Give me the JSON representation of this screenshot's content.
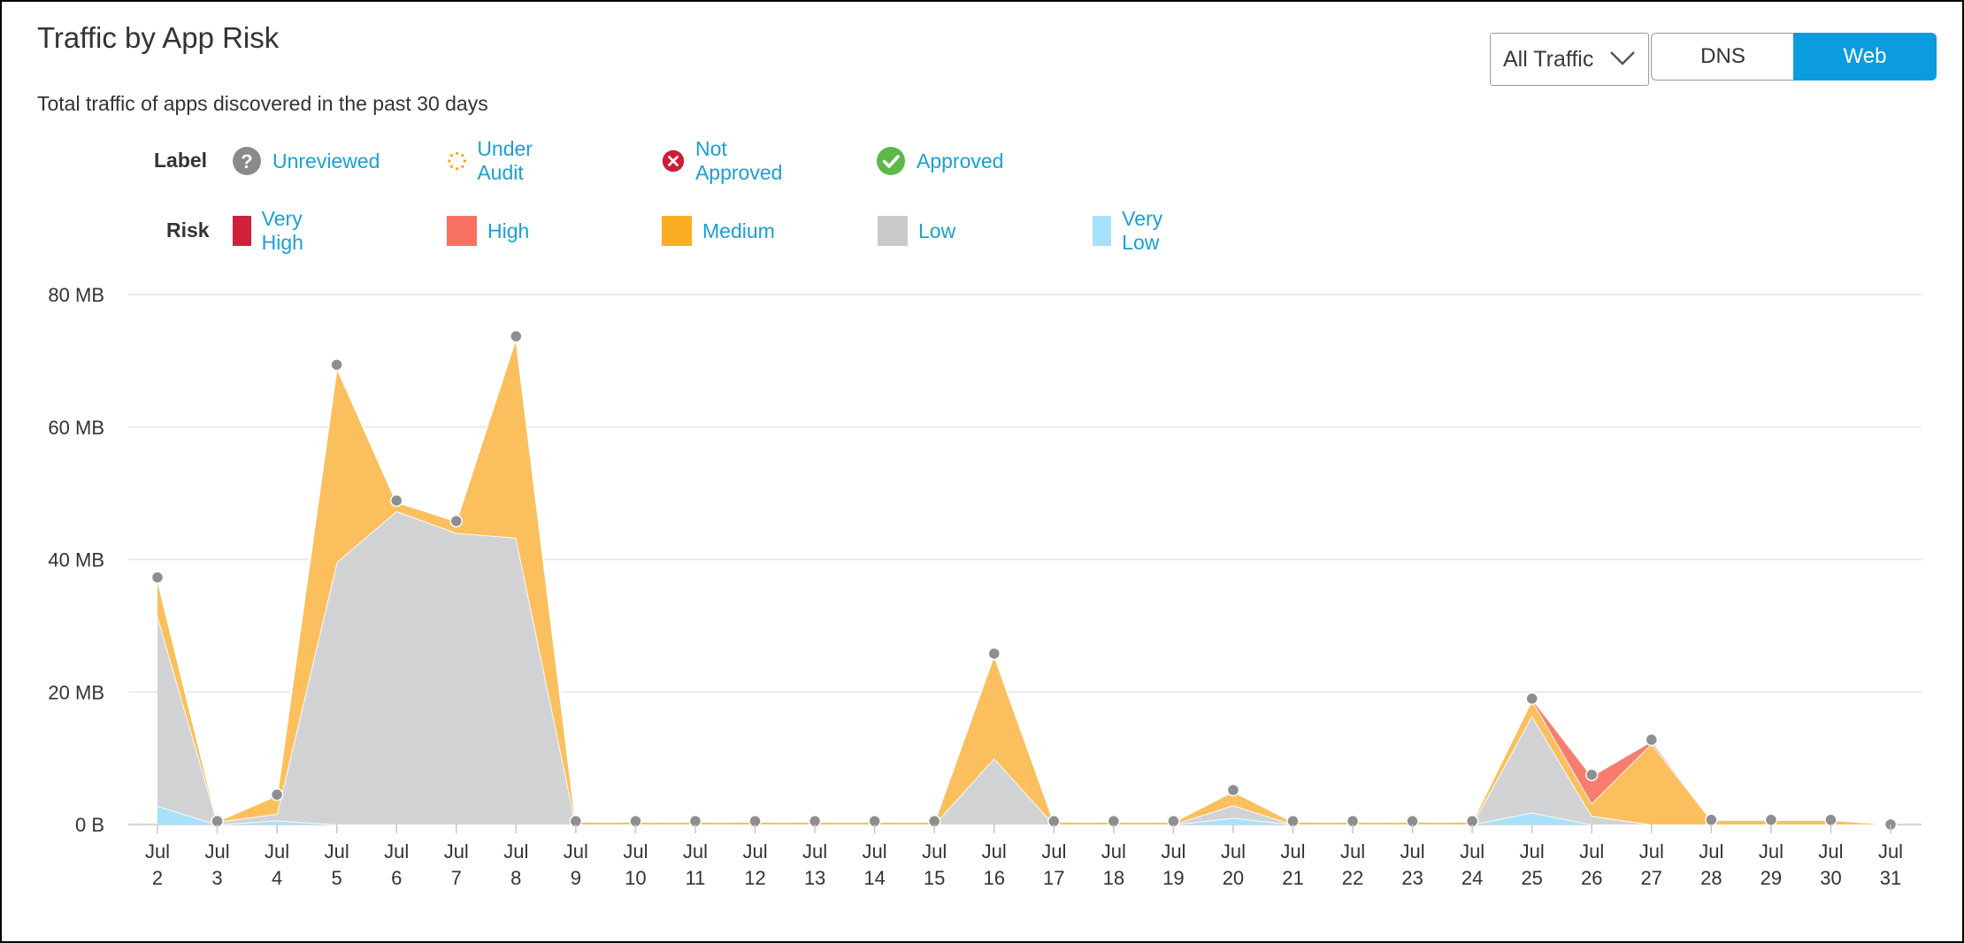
{
  "header": {
    "title": "Traffic by App Risk",
    "subtitle": "Total traffic of apps discovered in the past 30 days"
  },
  "controls": {
    "traffic_filter": "All Traffic",
    "toggle": [
      {
        "label": "DNS",
        "selected": false
      },
      {
        "label": "Web",
        "selected": true
      }
    ]
  },
  "legend": {
    "label_heading": "Label",
    "labels": [
      {
        "name": "Unreviewed",
        "icon": "question-circle-icon",
        "color": "#8a8a8a"
      },
      {
        "name": "Under Audit",
        "icon": "dotted-circle-icon",
        "color": "#f5a623"
      },
      {
        "name": "Not Approved",
        "icon": "x-circle-icon",
        "color": "#cc1f37"
      },
      {
        "name": "Approved",
        "icon": "check-circle-icon",
        "color": "#5eb848"
      }
    ],
    "risk_heading": "Risk",
    "risks": [
      {
        "name": "Very High",
        "color": "#d0203a"
      },
      {
        "name": "High",
        "color": "#f87060"
      },
      {
        "name": "Medium",
        "color": "#fbae22"
      },
      {
        "name": "Low",
        "color": "#c9cacc"
      },
      {
        "name": "Very Low",
        "color": "#a8e1fb"
      }
    ]
  },
  "chart_data": {
    "type": "area",
    "stacked": true,
    "x_month": "Jul",
    "x": [
      "2",
      "3",
      "4",
      "5",
      "6",
      "7",
      "8",
      "9",
      "10",
      "11",
      "12",
      "13",
      "14",
      "15",
      "16",
      "17",
      "18",
      "19",
      "20",
      "21",
      "22",
      "23",
      "24",
      "25",
      "26",
      "27",
      "28",
      "29",
      "30",
      "31"
    ],
    "y_ticks": [
      "0 B",
      "20 MB",
      "40 MB",
      "60 MB",
      "80 MB"
    ],
    "ylim": [
      0,
      80
    ],
    "y_unit": "MB",
    "grid": true,
    "series": [
      {
        "name": "Very Low",
        "color": "#a8e1fb",
        "values": [
          2.8,
          0,
          0.6,
          0,
          0,
          0,
          0,
          0,
          0,
          0,
          0,
          0,
          0,
          0,
          0,
          0,
          0,
          0,
          1.0,
          0,
          0,
          0,
          0,
          1.8,
          0,
          0,
          0,
          0,
          0,
          0
        ]
      },
      {
        "name": "Low",
        "color": "#d1d2d4",
        "values": [
          28.7,
          0.4,
          1.0,
          39.6,
          47.3,
          44.0,
          43.3,
          0,
          0,
          0,
          0,
          0,
          0,
          0,
          10.0,
          0,
          0,
          0,
          1.9,
          0,
          0,
          0,
          0,
          14.6,
          1.3,
          0,
          0,
          0,
          0,
          0
        ]
      },
      {
        "name": "Medium",
        "color": "#fbbf5d",
        "values": [
          5.5,
          0.1,
          2.8,
          29.4,
          1.4,
          1.8,
          30.2,
          0.4,
          0.4,
          0.4,
          0.4,
          0.4,
          0.4,
          0.4,
          15.6,
          0.4,
          0.4,
          0.4,
          2.1,
          0.4,
          0.4,
          0.4,
          0.4,
          2.4,
          1.9,
          12.2,
          0.7,
          0.7,
          0.7,
          0
        ]
      },
      {
        "name": "High",
        "color": "#f87d70",
        "values": [
          0,
          0,
          0,
          0,
          0,
          0,
          0,
          0,
          0,
          0,
          0,
          0,
          0,
          0,
          0,
          0,
          0,
          0,
          0,
          0,
          0,
          0,
          0,
          0.2,
          4.1,
          0.4,
          0,
          0,
          0,
          0
        ]
      }
    ],
    "totals": [
      37.3,
      0.5,
      4.5,
      69.4,
      48.9,
      45.8,
      73.7,
      0.5,
      0.5,
      0.5,
      0.5,
      0.5,
      0.5,
      0.5,
      25.8,
      0.5,
      0.5,
      0.5,
      5.2,
      0.5,
      0.5,
      0.5,
      0.5,
      19.0,
      7.5,
      12.8,
      0.7,
      0.7,
      0.7,
      0
    ]
  }
}
